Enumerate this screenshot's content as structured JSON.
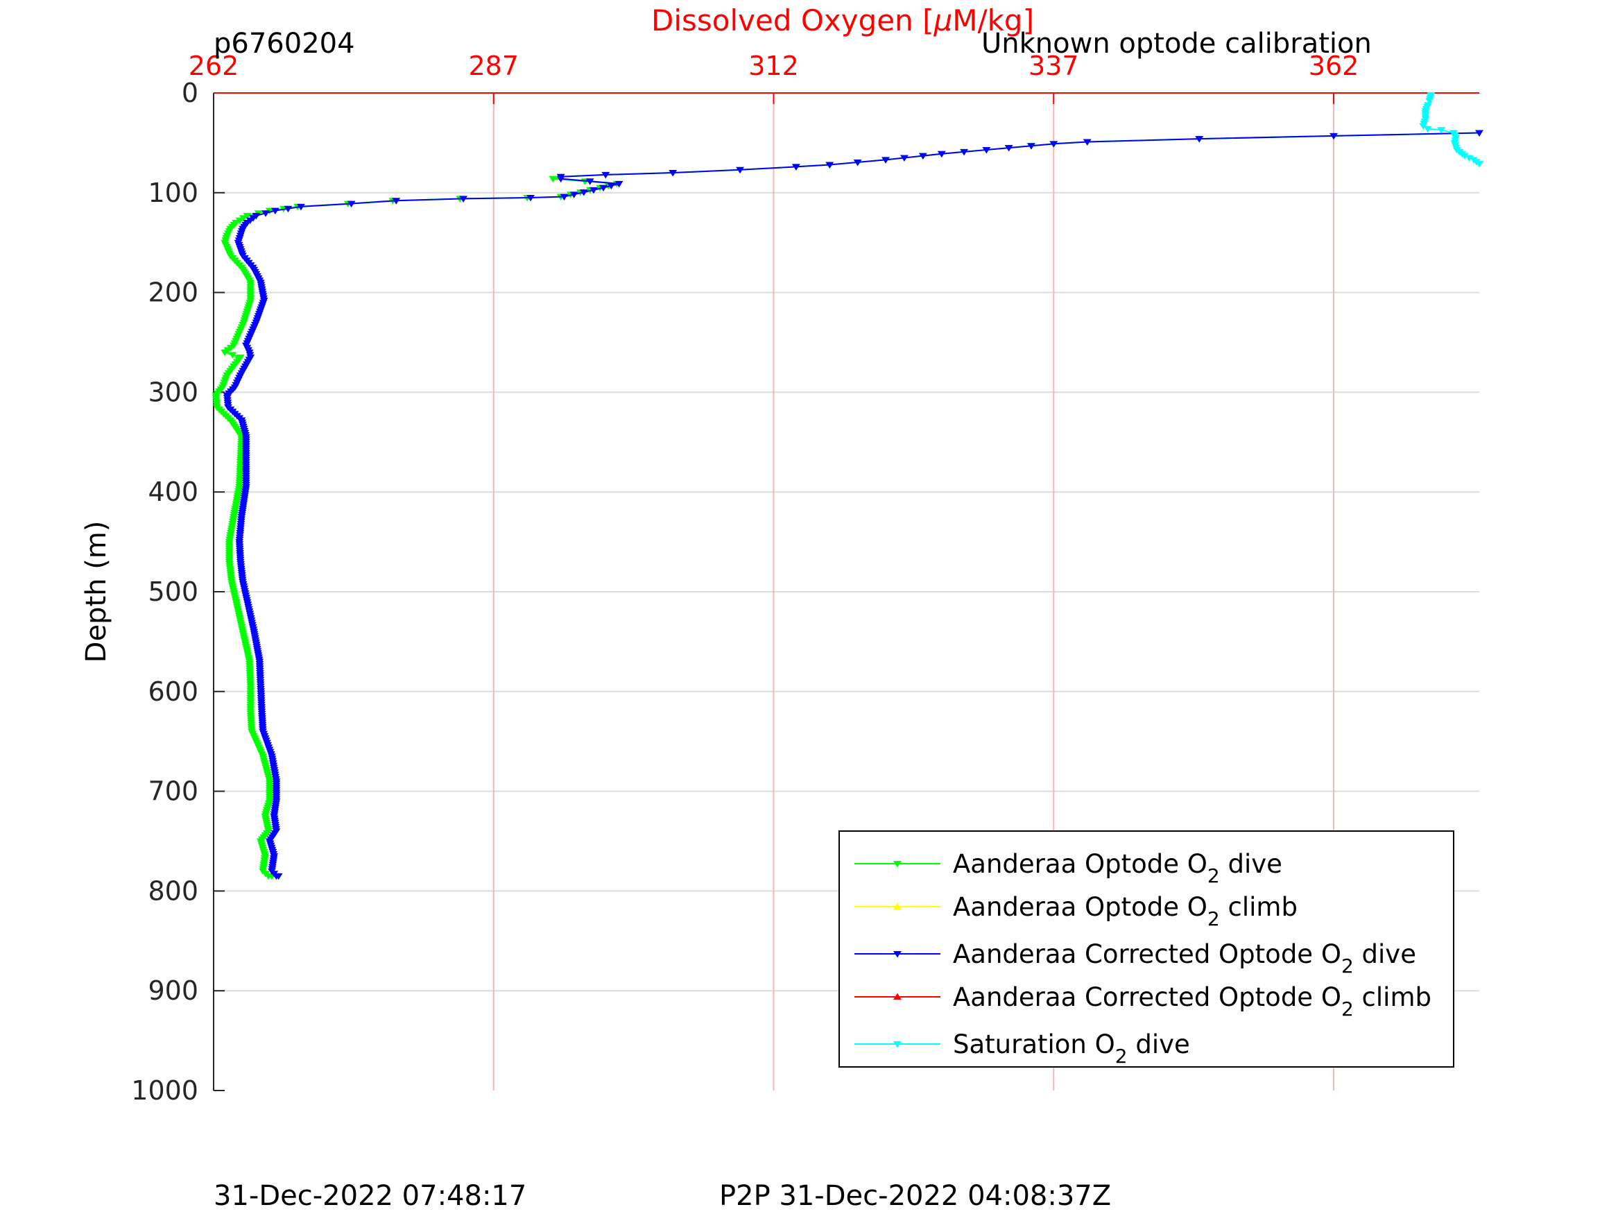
{
  "header": {
    "glider_id": "p6760204",
    "calibration_note": "Unknown optode calibration"
  },
  "footer": {
    "left_timestamp": "31-Dec-2022 07:48:17",
    "right_timestamp": "P2P 31-Dec-2022 04:08:37Z"
  },
  "colors": {
    "oxygen_axis": "#ff0000",
    "grid_vertical": "#f4b6b6",
    "grid_horizontal": "#dcdcdc",
    "axis": "#262626"
  },
  "chart_data": {
    "type": "line",
    "title": "Dissolved Oxygen [μM/kg]",
    "xlabel": "Dissolved Oxygen [μM/kg]",
    "ylabel": "Depth (m)",
    "x_axis_position": "top",
    "y_axis_direction": "reversed",
    "xlim": [
      262,
      375
    ],
    "ylim": [
      0,
      1000
    ],
    "xticks": [
      262,
      287,
      312,
      337,
      362
    ],
    "xtick_labels": [
      "262",
      "287",
      "312",
      "337",
      "362"
    ],
    "yticks": [
      0,
      100,
      200,
      300,
      400,
      500,
      600,
      700,
      800,
      900,
      1000
    ],
    "ytick_labels": [
      "0",
      "100",
      "200",
      "300",
      "400",
      "500",
      "600",
      "700",
      "800",
      "900",
      "1000"
    ],
    "grid": true,
    "legend_position": "bottom-right",
    "legend": [
      {
        "name": "Aanderaa Optode O",
        "sub": "2",
        "suffix": " dive",
        "color": "#00ff00",
        "marker": "down"
      },
      {
        "name": "Aanderaa Optode O",
        "sub": "2",
        "suffix": " climb",
        "color": "#ffff00",
        "marker": "up"
      },
      {
        "name": "Aanderaa Corrected Optode O",
        "sub": "2",
        "suffix": " dive",
        "color": "#0000ff",
        "marker": "down"
      },
      {
        "name": "Aanderaa Corrected Optode O",
        "sub": "2",
        "suffix": " climb",
        "color": "#ff0000",
        "marker": "up"
      },
      {
        "name": "Saturation O",
        "sub": "2",
        "suffix": " dive",
        "color": "#00ffff",
        "marker": "down"
      }
    ],
    "series": [
      {
        "name": "Aanderaa Optode O2 dive",
        "color": "#00ff00",
        "marker": "down",
        "x": [
          375,
          362,
          350,
          340,
          337,
          333,
          327,
          322,
          317,
          314,
          309,
          303,
          297,
          293,
          292.3,
          298,
          296.5,
          293,
          290,
          284,
          278,
          274,
          269.5,
          267,
          265,
          264,
          263.5,
          263.2,
          263.0,
          263.5,
          264.5,
          265.3,
          265.3,
          264.7,
          263.8,
          263.0,
          264.4,
          263.2,
          262.8,
          262.2,
          262.3,
          263.5,
          264.5,
          264.4,
          264.3,
          263.8,
          263.4,
          263.4,
          263.6,
          264.1,
          264.6,
          265.2,
          265.3,
          265.3,
          265.4,
          266.4,
          267.0,
          267.0,
          266.6,
          266.9,
          266.2,
          266.6,
          266.4,
          266.9,
          267.2,
          266.9
        ],
        "y": [
          40,
          43,
          46,
          49,
          51,
          55,
          61,
          67,
          72,
          74,
          77,
          80,
          82,
          84,
          86,
          91,
          95,
          104,
          105,
          106,
          108,
          111,
          114,
          118,
          123,
          130,
          136,
          143,
          150,
          163,
          175,
          190,
          208,
          230,
          253,
          260,
          265,
          283,
          295,
          303,
          315,
          328,
          345,
          370,
          395,
          425,
          450,
          470,
          490,
          515,
          540,
          570,
          595,
          620,
          640,
          665,
          690,
          710,
          725,
          740,
          750,
          765,
          780,
          785,
          785,
          785
        ]
      },
      {
        "name": "Aanderaa Corrected Optode O2 dive",
        "color": "#0000ff",
        "marker": "down",
        "x": [
          375,
          362,
          350,
          340,
          337,
          333,
          327,
          322,
          317,
          314,
          309,
          303,
          297,
          293,
          293.0,
          298.2,
          296.8,
          293.3,
          290.3,
          284.3,
          278.3,
          274.3,
          269.8,
          267.5,
          265.8,
          265.0,
          264.6,
          264.4,
          264.2,
          264.6,
          265.5,
          266.2,
          266.5,
          265.8,
          264.9,
          265.2,
          265.3,
          264.4,
          263.9,
          263.2,
          263.3,
          264.5,
          264.9,
          264.9,
          264.9,
          264.5,
          264.3,
          264.4,
          264.6,
          265.1,
          265.6,
          266.1,
          266.2,
          266.3,
          266.4,
          267.2,
          267.6,
          267.6,
          267.4,
          267.6,
          267.0,
          267.4,
          267.2,
          267.6,
          267.8,
          267.6
        ],
        "y": [
          40,
          43,
          46,
          49,
          51,
          55,
          61,
          67,
          72,
          74,
          77,
          80,
          82,
          84,
          86,
          91,
          95,
          104,
          105,
          106,
          108,
          111,
          114,
          118,
          123,
          130,
          136,
          143,
          150,
          163,
          175,
          190,
          208,
          230,
          253,
          260,
          265,
          283,
          295,
          303,
          315,
          328,
          345,
          370,
          395,
          425,
          450,
          470,
          490,
          515,
          540,
          570,
          595,
          620,
          640,
          665,
          690,
          710,
          725,
          740,
          750,
          765,
          780,
          785,
          785,
          785
        ]
      },
      {
        "name": "Saturation O2 dive",
        "color": "#00ffff",
        "marker": "down",
        "x": [
          370.7,
          370.5,
          370.2,
          370.2,
          370.0,
          370.4,
          371.6,
          372.7,
          372.9,
          372.8,
          373.0,
          373.7,
          374.5,
          375
        ],
        "y": [
          2,
          10,
          18,
          26,
          33,
          36,
          37,
          40,
          45,
          50,
          57,
          63,
          67,
          71
        ]
      }
    ]
  }
}
